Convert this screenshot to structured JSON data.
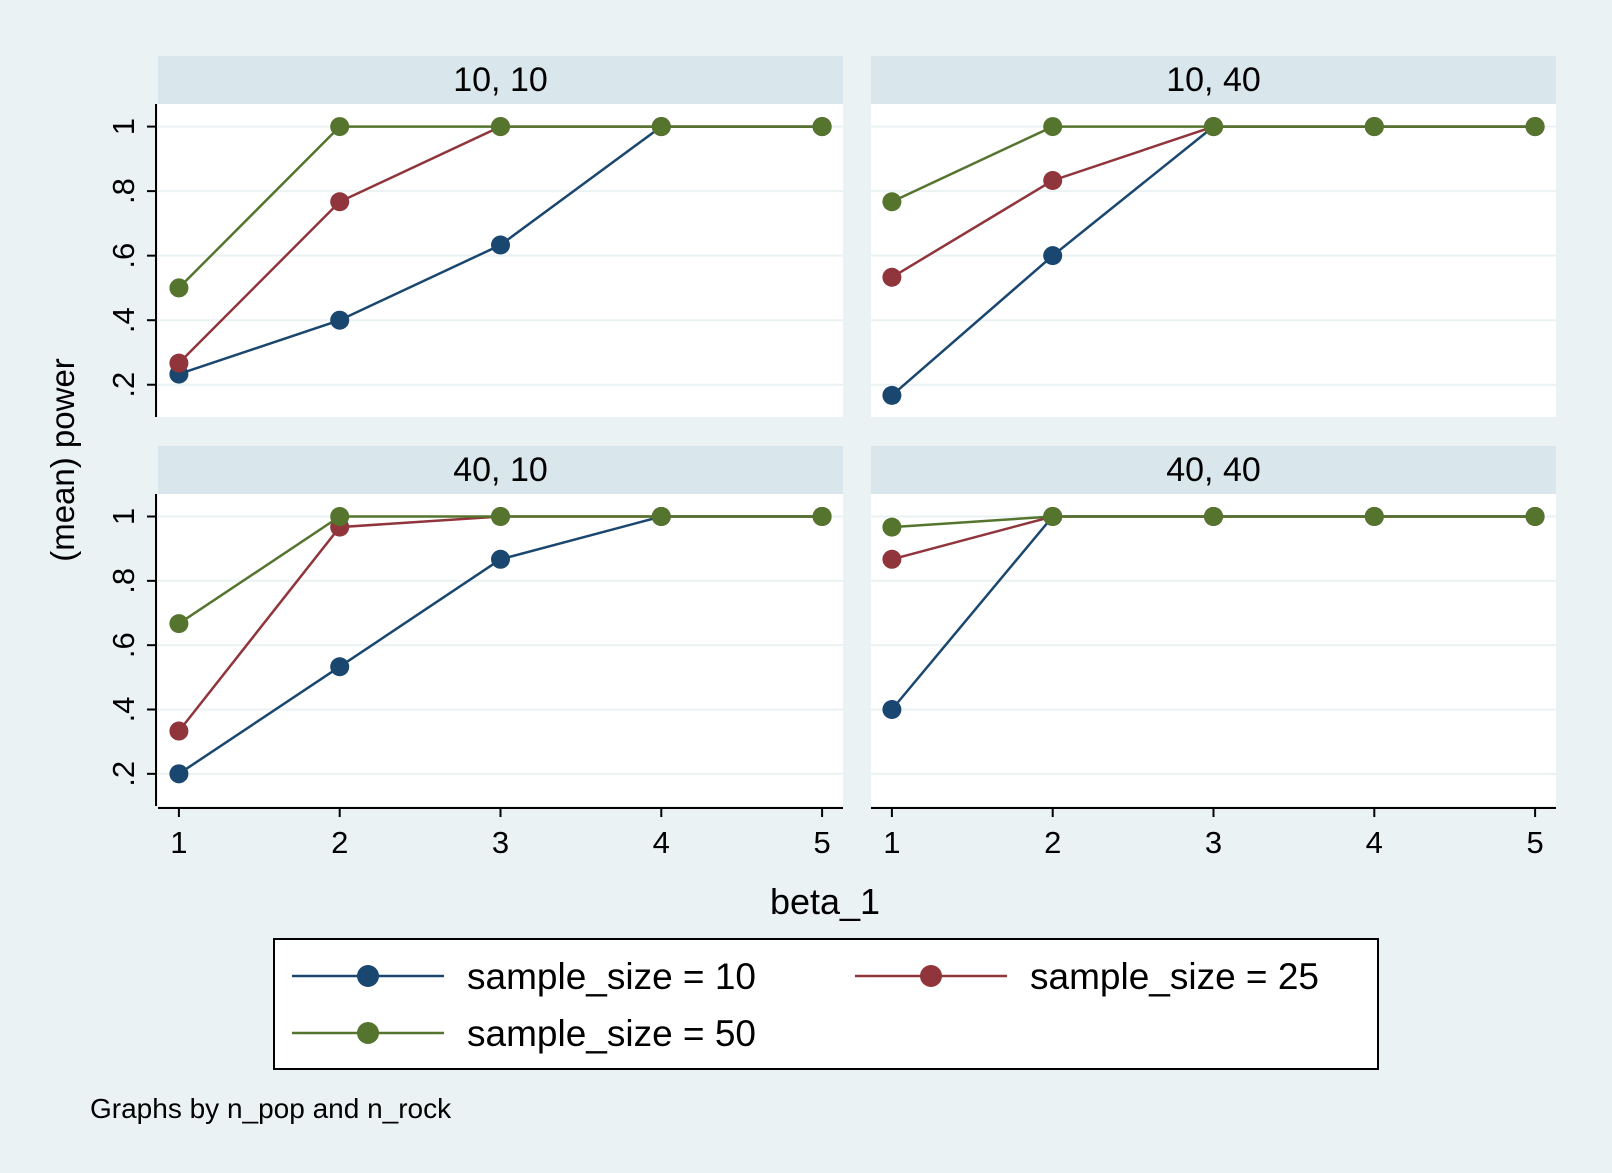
{
  "chart_data": {
    "type": "line",
    "ylabel": "(mean) power",
    "xlabel": "beta_1",
    "note": "Graphs by n_pop and n_rock",
    "x_ticks": [
      1,
      2,
      3,
      4,
      5
    ],
    "y_ticks": [
      0.2,
      0.4,
      0.6,
      0.8,
      1
    ],
    "y_tick_labels": [
      ".2",
      ".4",
      ".6",
      ".8",
      "1"
    ],
    "xlim": [
      0.87,
      5.13
    ],
    "ylim": [
      0.1,
      1.07
    ],
    "grid": true,
    "legend_placement": "bottom",
    "legend": [
      {
        "label": "sample_size = 10",
        "color": "#1a476f"
      },
      {
        "label": "sample_size = 25",
        "color": "#90353b"
      },
      {
        "label": "sample_size = 50",
        "color": "#55752f"
      }
    ],
    "panels": [
      {
        "title": "10, 10",
        "x": [
          1,
          2,
          3,
          4,
          5
        ],
        "series": [
          {
            "name": "sample_size = 10",
            "values": [
              0.233,
              0.4,
              0.633,
              1,
              1
            ]
          },
          {
            "name": "sample_size = 25",
            "values": [
              0.267,
              0.767,
              1,
              1,
              1
            ]
          },
          {
            "name": "sample_size = 50",
            "values": [
              0.5,
              1,
              1,
              1,
              1
            ]
          }
        ]
      },
      {
        "title": "10, 40",
        "x": [
          1,
          2,
          3,
          4,
          5
        ],
        "series": [
          {
            "name": "sample_size = 10",
            "values": [
              0.167,
              0.6,
              1,
              1,
              1
            ]
          },
          {
            "name": "sample_size = 25",
            "values": [
              0.533,
              0.833,
              1,
              1,
              1
            ]
          },
          {
            "name": "sample_size = 50",
            "values": [
              0.767,
              1,
              1,
              1,
              1
            ]
          }
        ]
      },
      {
        "title": "40, 10",
        "x": [
          1,
          2,
          3,
          4,
          5
        ],
        "series": [
          {
            "name": "sample_size = 10",
            "values": [
              0.2,
              0.533,
              0.867,
              1,
              1
            ]
          },
          {
            "name": "sample_size = 25",
            "values": [
              0.333,
              0.967,
              1,
              1,
              1
            ]
          },
          {
            "name": "sample_size = 50",
            "values": [
              0.667,
              1,
              1,
              1,
              1
            ]
          }
        ]
      },
      {
        "title": "40, 40",
        "x": [
          1,
          2,
          3,
          4,
          5
        ],
        "series": [
          {
            "name": "sample_size = 10",
            "values": [
              0.4,
              1,
              1,
              1,
              1
            ]
          },
          {
            "name": "sample_size = 25",
            "values": [
              0.867,
              1,
              1,
              1,
              1
            ]
          },
          {
            "name": "sample_size = 50",
            "values": [
              0.967,
              1,
              1,
              1,
              1
            ]
          }
        ]
      }
    ]
  }
}
